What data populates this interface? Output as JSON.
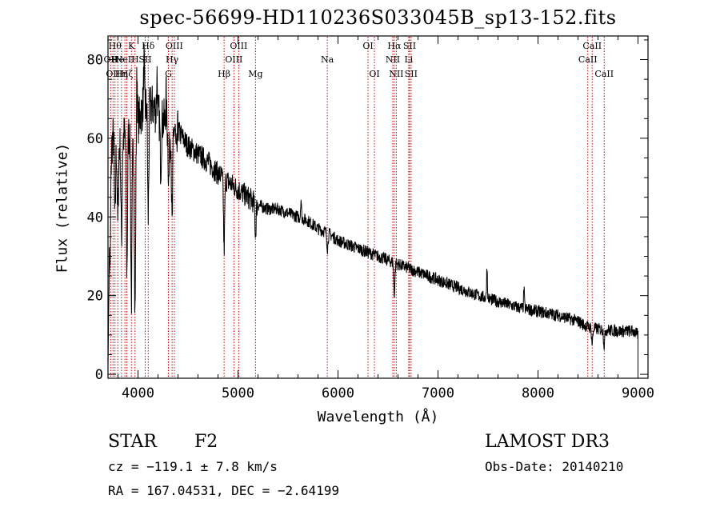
{
  "chart_data": {
    "type": "line",
    "title": "spec-56699-HD110236S033045B_sp13-152.fits",
    "xlabel": "Wavelength (Å)",
    "ylabel": "Flux (relative)",
    "xlim": [
      3700,
      9100
    ],
    "ylim": [
      -1,
      86
    ],
    "xticks": [
      4000,
      5000,
      6000,
      7000,
      8000,
      9000
    ],
    "yticks": [
      0,
      20,
      40,
      60,
      80
    ],
    "grid": false,
    "line_color": "#000000",
    "marker_color": "#cc0000",
    "continuum": [
      {
        "x": 3700,
        "y": 30
      },
      {
        "x": 3720,
        "y": 55
      },
      {
        "x": 3760,
        "y": 62
      },
      {
        "x": 3800,
        "y": 58
      },
      {
        "x": 3850,
        "y": 60
      },
      {
        "x": 3900,
        "y": 62
      },
      {
        "x": 3950,
        "y": 58
      },
      {
        "x": 4000,
        "y": 64
      },
      {
        "x": 4050,
        "y": 68
      },
      {
        "x": 4100,
        "y": 68
      },
      {
        "x": 4150,
        "y": 68
      },
      {
        "x": 4200,
        "y": 66
      },
      {
        "x": 4300,
        "y": 63
      },
      {
        "x": 4400,
        "y": 62
      },
      {
        "x": 4500,
        "y": 58
      },
      {
        "x": 4600,
        "y": 56
      },
      {
        "x": 4700,
        "y": 54
      },
      {
        "x": 4800,
        "y": 51
      },
      {
        "x": 4900,
        "y": 49
      },
      {
        "x": 5000,
        "y": 47
      },
      {
        "x": 5100,
        "y": 45
      },
      {
        "x": 5200,
        "y": 43
      },
      {
        "x": 5300,
        "y": 42
      },
      {
        "x": 5400,
        "y": 42
      },
      {
        "x": 5500,
        "y": 41
      },
      {
        "x": 5600,
        "y": 40
      },
      {
        "x": 5700,
        "y": 39
      },
      {
        "x": 5800,
        "y": 37
      },
      {
        "x": 5900,
        "y": 36
      },
      {
        "x": 6000,
        "y": 34
      },
      {
        "x": 6100,
        "y": 33
      },
      {
        "x": 6200,
        "y": 32
      },
      {
        "x": 6300,
        "y": 31
      },
      {
        "x": 6400,
        "y": 30
      },
      {
        "x": 6500,
        "y": 29
      },
      {
        "x": 6600,
        "y": 28
      },
      {
        "x": 6700,
        "y": 27
      },
      {
        "x": 6800,
        "y": 26
      },
      {
        "x": 6900,
        "y": 25
      },
      {
        "x": 7000,
        "y": 24
      },
      {
        "x": 7200,
        "y": 22
      },
      {
        "x": 7400,
        "y": 20
      },
      {
        "x": 7600,
        "y": 18.5
      },
      {
        "x": 7800,
        "y": 17
      },
      {
        "x": 8000,
        "y": 16
      },
      {
        "x": 8200,
        "y": 15
      },
      {
        "x": 8400,
        "y": 13.5
      },
      {
        "x": 8500,
        "y": 12
      },
      {
        "x": 8600,
        "y": 11.5
      },
      {
        "x": 8800,
        "y": 11
      },
      {
        "x": 8950,
        "y": 11
      },
      {
        "x": 9000,
        "y": 10
      }
    ],
    "absorption_dips": [
      {
        "x": 3720,
        "depth": 30
      },
      {
        "x": 3770,
        "depth": 22
      },
      {
        "x": 3798,
        "depth": 20
      },
      {
        "x": 3835,
        "depth": 25
      },
      {
        "x": 3889,
        "depth": 35
      },
      {
        "x": 3934,
        "depth": 40
      },
      {
        "x": 3970,
        "depth": 45
      },
      {
        "x": 4102,
        "depth": 28
      },
      {
        "x": 4227,
        "depth": 12
      },
      {
        "x": 4308,
        "depth": 14
      },
      {
        "x": 4341,
        "depth": 26
      },
      {
        "x": 4384,
        "depth": 8
      },
      {
        "x": 4861,
        "depth": 18
      },
      {
        "x": 5175,
        "depth": 8
      },
      {
        "x": 5895,
        "depth": 4
      },
      {
        "x": 6563,
        "depth": 8
      },
      {
        "x": 8542,
        "depth": 4
      },
      {
        "x": 8662,
        "depth": 4
      }
    ],
    "emission_spikes": [
      {
        "x": 3990,
        "height": 14
      },
      {
        "x": 4060,
        "height": 12
      },
      {
        "x": 4190,
        "height": 10
      },
      {
        "x": 4280,
        "height": 8
      },
      {
        "x": 5630,
        "height": 5
      },
      {
        "x": 7490,
        "height": 8
      },
      {
        "x": 7860,
        "height": 5
      }
    ],
    "lines": [
      {
        "x": 3727,
        "label": "OII",
        "row": 2
      },
      {
        "x": 3750,
        "label": "OII",
        "row": 3
      },
      {
        "x": 3770,
        "label": "Hθ",
        "row": 1
      },
      {
        "x": 3798,
        "label": "He",
        "row": 2
      },
      {
        "x": 3835,
        "label": "Hη",
        "row": 3
      },
      {
        "x": 3869,
        "label": "NeII",
        "row": 2
      },
      {
        "x": 3889,
        "label": "Hζ",
        "row": 3
      },
      {
        "x": 3934,
        "label": "K",
        "row": 1
      },
      {
        "x": 3970,
        "label": "H",
        "row": 2
      },
      {
        "x": 4072,
        "label": "SII",
        "row": 2
      },
      {
        "x": 4102,
        "label": "Hδ",
        "row": 1
      },
      {
        "x": 4304,
        "label": "G",
        "row": 3
      },
      {
        "x": 4341,
        "label": "Hγ",
        "row": 2
      },
      {
        "x": 4363,
        "label": "OIII",
        "row": 1
      },
      {
        "x": 4861,
        "label": "Hβ",
        "row": 3
      },
      {
        "x": 4959,
        "label": "OIII",
        "row": 2
      },
      {
        "x": 5007,
        "label": "OIII",
        "row": 1
      },
      {
        "x": 5175,
        "label": "Mg",
        "row": 3
      },
      {
        "x": 5893,
        "label": "Na",
        "row": 2
      },
      {
        "x": 6300,
        "label": "OI",
        "row": 1
      },
      {
        "x": 6364,
        "label": "OI",
        "row": 3
      },
      {
        "x": 6548,
        "label": "NII",
        "row": 2
      },
      {
        "x": 6563,
        "label": "Hα",
        "row": 1
      },
      {
        "x": 6583,
        "label": "NII",
        "row": 3
      },
      {
        "x": 6707,
        "label": "Li",
        "row": 2
      },
      {
        "x": 6716,
        "label": "SII",
        "row": 1
      },
      {
        "x": 6731,
        "label": "SII",
        "row": 3
      },
      {
        "x": 8498,
        "label": "CaII",
        "row": 2
      },
      {
        "x": 8542,
        "label": "CaII",
        "row": 1
      },
      {
        "x": 8662,
        "label": "CaII",
        "row": 3
      }
    ]
  },
  "info": {
    "object_class": "STAR",
    "subclass": "F2",
    "survey": "LAMOST DR3",
    "redshift_text": "cz = −119.1 ± 7.8 km/s",
    "obs_date_text": "Obs-Date: 20140210",
    "coords_text": "RA = 167.04531, DEC =  −2.64199"
  }
}
